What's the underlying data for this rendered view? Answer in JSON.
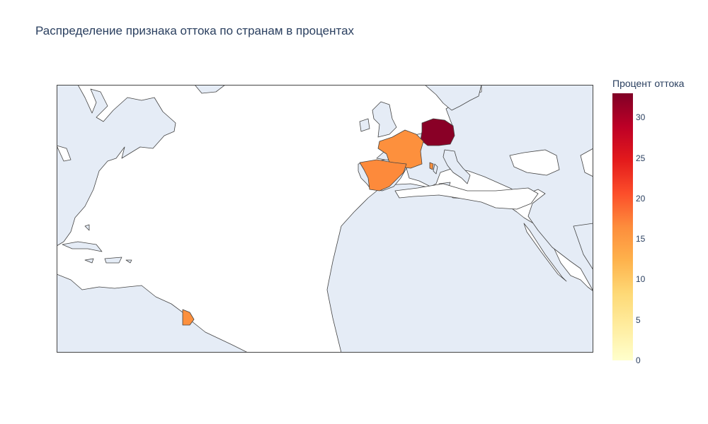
{
  "title": "Распределение признака оттока по странам в процентах",
  "colorbar": {
    "title": "Процент оттока",
    "min": 0,
    "max": 33,
    "ticks": [
      "0",
      "5",
      "10",
      "15",
      "20",
      "25",
      "30"
    ],
    "colors": [
      "#ffffcc",
      "#ffeda0",
      "#fed976",
      "#feb24c",
      "#fd8d3c",
      "#fc4e2a",
      "#e31a1c",
      "#bd0026",
      "#800026"
    ]
  },
  "map": {
    "land_color": "#e5ecf6",
    "border_color": "#444444",
    "background": "#ffffff"
  },
  "chart_data": {
    "type": "choropleth",
    "title": "Распределение признака оттока по странам в процентах",
    "colorbar_title": "Процент оттока",
    "colorscale": "YlOrRd",
    "range": [
      0,
      33
    ],
    "countries": [
      {
        "name": "Germany",
        "value": 32.4
      },
      {
        "name": "France",
        "value": 16.2
      },
      {
        "name": "Spain",
        "value": 16.7
      },
      {
        "name": "French Guiana",
        "value": 16.2
      }
    ]
  }
}
